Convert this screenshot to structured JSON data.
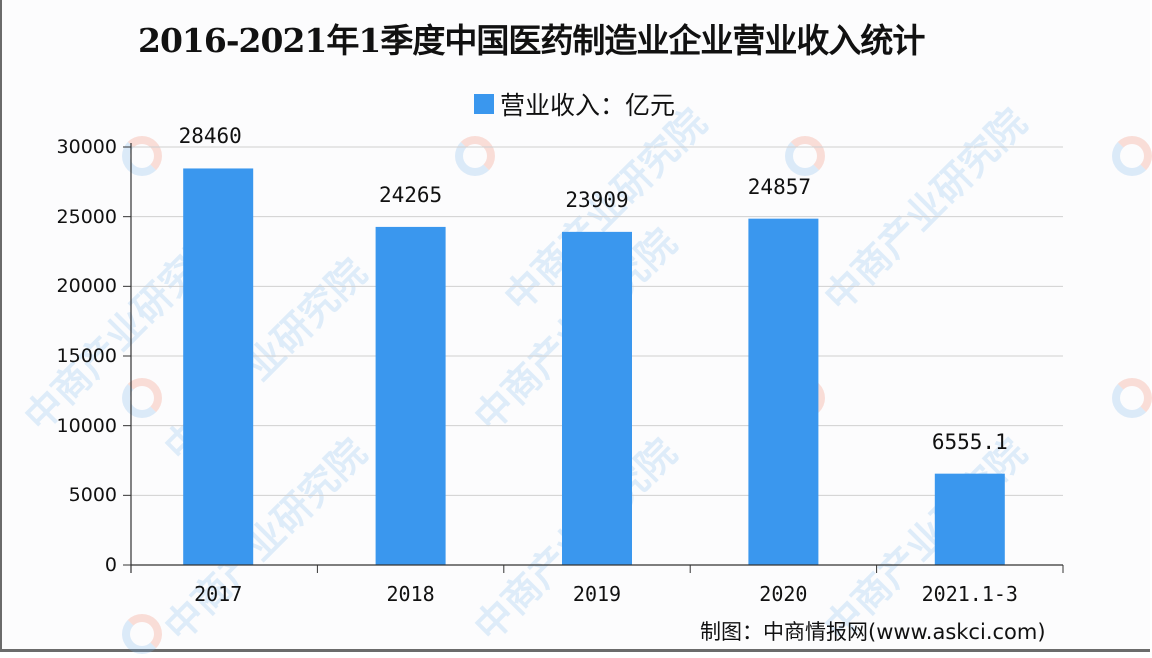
{
  "title": "2016-2021年1季度中国医药制造业企业营业收入统计",
  "legend": {
    "label": "营业收入：亿元",
    "color": "#3a97ee"
  },
  "footer": "制图：中商情报网(www.askci.com)",
  "watermark": "中商产业研究院",
  "chart_data": {
    "type": "bar",
    "title": "2016-2021年1季度中国医药制造业企业营业收入统计",
    "categories": [
      "2017",
      "2018",
      "2019",
      "2020",
      "2021.1-3"
    ],
    "series": [
      {
        "name": "营业收入：亿元",
        "values": [
          28460,
          24265,
          23909,
          24857,
          6555.1
        ],
        "color": "#3a97ee"
      }
    ],
    "data_labels": [
      "28460",
      "24265",
      "23909",
      "24857",
      "6555.1"
    ],
    "xlabel": "",
    "ylabel": "",
    "ylim": [
      0,
      30000
    ],
    "yticks": [
      "0",
      "5000",
      "10000",
      "15000",
      "20000",
      "25000",
      "30000"
    ],
    "grid": true,
    "legend_position": "top"
  }
}
